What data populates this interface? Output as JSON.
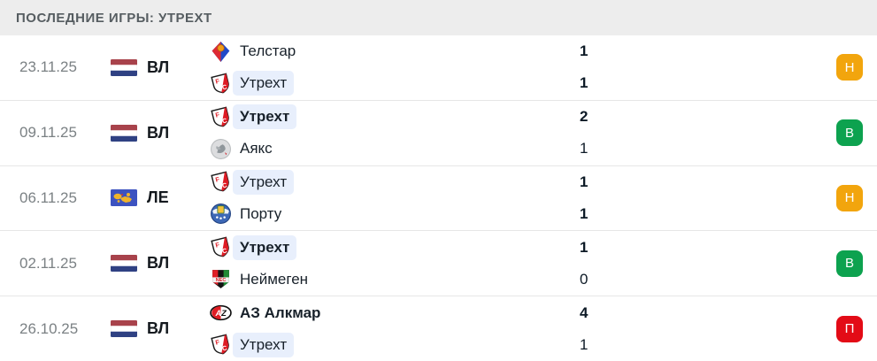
{
  "header": {
    "title": "ПОСЛЕДНИЕ ИГРЫ: УТРЕХТ"
  },
  "colors": {
    "draw_badge": "#F2A50D",
    "win_badge": "#0DA24F",
    "loss_badge": "#E30B16",
    "highlight_chip": "#e8effc",
    "header_bg": "#ededed"
  },
  "matches": [
    {
      "date": "23.11.25",
      "competition": "ВЛ",
      "flag": "netherlands-flag",
      "teams": [
        {
          "name": "Телстар",
          "logo": "telstar-logo",
          "score": "1",
          "bold_name": false,
          "bold_score": true,
          "highlighted": false
        },
        {
          "name": "Утрехт",
          "logo": "utrecht-logo",
          "score": "1",
          "bold_name": false,
          "bold_score": true,
          "highlighted": true
        }
      ],
      "result": {
        "label": "Н",
        "color": "#F2A50D"
      }
    },
    {
      "date": "09.11.25",
      "competition": "ВЛ",
      "flag": "netherlands-flag",
      "teams": [
        {
          "name": "Утрехт",
          "logo": "utrecht-logo",
          "score": "2",
          "bold_name": true,
          "bold_score": true,
          "highlighted": true
        },
        {
          "name": "Аякс",
          "logo": "ajax-logo",
          "score": "1",
          "bold_name": false,
          "bold_score": false,
          "highlighted": false
        }
      ],
      "result": {
        "label": "В",
        "color": "#0DA24F"
      }
    },
    {
      "date": "06.11.25",
      "competition": "ЛЕ",
      "flag": "world-flag",
      "teams": [
        {
          "name": "Утрехт",
          "logo": "utrecht-logo",
          "score": "1",
          "bold_name": false,
          "bold_score": true,
          "highlighted": true
        },
        {
          "name": "Порту",
          "logo": "porto-logo",
          "score": "1",
          "bold_name": false,
          "bold_score": true,
          "highlighted": false
        }
      ],
      "result": {
        "label": "Н",
        "color": "#F2A50D"
      }
    },
    {
      "date": "02.11.25",
      "competition": "ВЛ",
      "flag": "netherlands-flag",
      "teams": [
        {
          "name": "Утрехт",
          "logo": "utrecht-logo",
          "score": "1",
          "bold_name": true,
          "bold_score": true,
          "highlighted": true
        },
        {
          "name": "Неймеген",
          "logo": "nijmegen-logo",
          "score": "0",
          "bold_name": false,
          "bold_score": false,
          "highlighted": false
        }
      ],
      "result": {
        "label": "В",
        "color": "#0DA24F"
      }
    },
    {
      "date": "26.10.25",
      "competition": "ВЛ",
      "flag": "netherlands-flag",
      "teams": [
        {
          "name": "АЗ Алкмар",
          "logo": "az-alkmaar-logo",
          "score": "4",
          "bold_name": true,
          "bold_score": true,
          "highlighted": false
        },
        {
          "name": "Утрехт",
          "logo": "utrecht-logo",
          "score": "1",
          "bold_name": false,
          "bold_score": false,
          "highlighted": true
        }
      ],
      "result": {
        "label": "П",
        "color": "#E30B16"
      }
    }
  ]
}
